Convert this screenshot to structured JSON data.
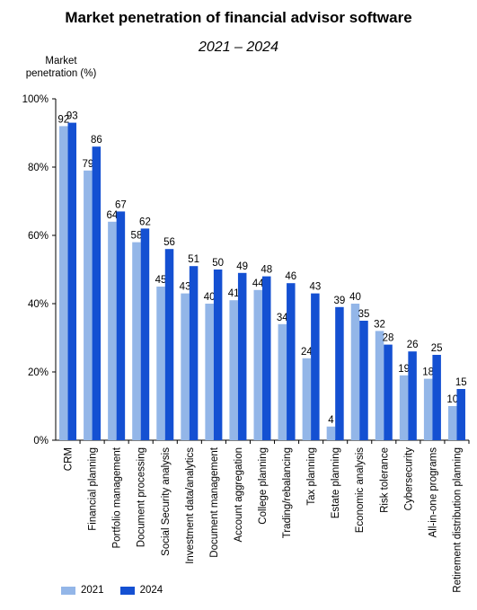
{
  "chart_data": {
    "type": "bar",
    "title": "Market penetration of financial advisor software",
    "subtitle": "2021 – 2024",
    "ylabel": "Market\npenetration (%)",
    "ylim": [
      0,
      100
    ],
    "yticks": [
      0,
      20,
      40,
      60,
      80,
      100
    ],
    "ytick_labels": [
      "0%",
      "20%",
      "40%",
      "60%",
      "80%",
      "100%"
    ],
    "grid": false,
    "legend_position": "bottom-left",
    "categories": [
      "CRM",
      "Financial planning",
      "Portfolio management",
      "Document processing",
      "Social Security analysis",
      "Investment data/analytics",
      "Document management",
      "Account aggregation",
      "College planning",
      "Trading/rebalancing",
      "Tax planning",
      "Estate planning",
      "Economic analysis",
      "Risk tolerance",
      "Cybersecurity",
      "All-in-one programs",
      "Retirement distribution planning"
    ],
    "series": [
      {
        "name": "2021",
        "color": "#93b6e8",
        "values": [
          92,
          79,
          64,
          58,
          45,
          43,
          40,
          41,
          44,
          34,
          24,
          4,
          40,
          32,
          19,
          18,
          10
        ]
      },
      {
        "name": "2024",
        "color": "#1450d2",
        "values": [
          93,
          86,
          67,
          62,
          56,
          51,
          50,
          49,
          48,
          46,
          43,
          39,
          35,
          28,
          26,
          25,
          15
        ]
      }
    ]
  }
}
